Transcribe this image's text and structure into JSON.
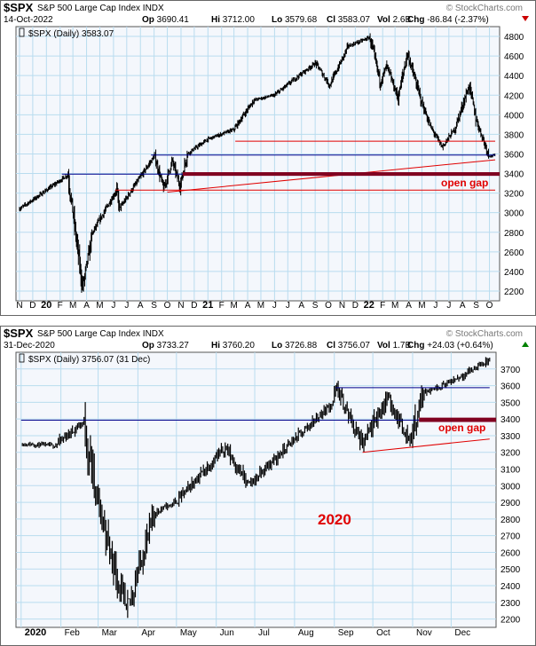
{
  "charts": [
    {
      "header": {
        "symbol": "$SPX",
        "name": "S&P 500 Large Cap Index",
        "exchange": "INDX",
        "date": "14-Oct-2022",
        "open_label": "Op",
        "open": "3690.41",
        "high_label": "Hi",
        "high": "3712.00",
        "low_label": "Lo",
        "low": "3579.68",
        "close_label": "Cl",
        "close": "3583.07",
        "vol_label": "Vol",
        "vol": "2.6B",
        "chg_label": "Chg",
        "chg": "-86.84 (-2.37%)",
        "chg_arrow": "down",
        "credit": "© StockCharts.com"
      },
      "legend": "$SPX (Daily) 3583.07",
      "y_ticks": [
        2200,
        2400,
        2600,
        2800,
        3000,
        3200,
        3400,
        3600,
        3800,
        4000,
        4200,
        4400,
        4600,
        4800
      ],
      "x_labels": [
        "N",
        "D",
        "20",
        "F",
        "M",
        "A",
        "M",
        "J",
        "J",
        "A",
        "S",
        "O",
        "N",
        "D",
        "21",
        "F",
        "M",
        "A",
        "M",
        "J",
        "J",
        "A",
        "S",
        "O",
        "N",
        "D",
        "22",
        "F",
        "M",
        "A",
        "M",
        "J",
        "J",
        "A",
        "S",
        "O"
      ],
      "x_bold": [
        "20",
        "21",
        "22"
      ],
      "annotation": "open gap"
    },
    {
      "header": {
        "symbol": "$SPX",
        "name": "S&P 500 Large Cap Index",
        "exchange": "INDX",
        "date": "31-Dec-2020",
        "open_label": "Op",
        "open": "3733.27",
        "high_label": "Hi",
        "high": "3760.20",
        "low_label": "Lo",
        "low": "3726.88",
        "close_label": "Cl",
        "close": "3756.07",
        "vol_label": "Vol",
        "vol": "1.7B",
        "chg_label": "Chg",
        "chg": "+24.03 (+0.64%)",
        "chg_arrow": "up",
        "credit": "© StockCharts.com"
      },
      "legend": "$SPX (Daily) 3756.07 (31 Dec)",
      "y_ticks": [
        2200,
        2300,
        2400,
        2500,
        2600,
        2700,
        2800,
        2900,
        3000,
        3100,
        3200,
        3300,
        3400,
        3500,
        3600,
        3700
      ],
      "x_labels": [
        "2020",
        "Feb",
        "Mar",
        "Apr",
        "May",
        "Jun",
        "Jul",
        "Aug",
        "Sep",
        "Oct",
        "Nov",
        "Dec"
      ],
      "x_bold": [
        "2020"
      ],
      "big_label": "2020",
      "annotation": "open gap"
    }
  ],
  "colors": {
    "plot_bg": "#f4f7fc",
    "grid": "#b9dcef",
    "price": "#000000",
    "blue_line": "#00008b",
    "red_line": "#e00000",
    "gap_band": "#800020",
    "annotation": "#e00000",
    "up_arrow": "#008000",
    "down_arrow": "#cc0000"
  },
  "chart_data": [
    {
      "type": "line",
      "title": "$SPX S&P 500 Large Cap Index INDX",
      "series": [
        {
          "name": "$SPX (Daily)",
          "x": [
            "2019-11-01",
            "2019-12-01",
            "2020-01-01",
            "2020-02-19",
            "2020-03-23",
            "2020-04-15",
            "2020-06-08",
            "2020-06-15",
            "2020-07-15",
            "2020-09-02",
            "2020-09-23",
            "2020-10-12",
            "2020-10-30",
            "2020-11-15",
            "2021-01-01",
            "2021-03-01",
            "2021-04-15",
            "2021-06-01",
            "2021-07-15",
            "2021-09-02",
            "2021-10-04",
            "2021-11-15",
            "2022-01-03",
            "2022-01-27",
            "2022-02-10",
            "2022-03-08",
            "2022-03-29",
            "2022-05-01",
            "2022-05-20",
            "2022-06-16",
            "2022-07-15",
            "2022-08-16",
            "2022-09-01",
            "2022-09-30",
            "2022-10-14"
          ],
          "values": [
            3040,
            3130,
            3230,
            3386,
            2237,
            2800,
            3230,
            3040,
            3250,
            3580,
            3240,
            3530,
            3270,
            3600,
            3750,
            3850,
            4150,
            4200,
            4360,
            4530,
            4300,
            4700,
            4790,
            4330,
            4500,
            4170,
            4630,
            4120,
            3880,
            3670,
            3860,
            4300,
            3950,
            3580,
            3583
          ]
        }
      ],
      "ylim": [
        2100,
        4900
      ],
      "reference_lines": [
        {
          "color": "red",
          "value": 3730,
          "from": "2021-03-04",
          "to": "2022-10-14"
        },
        {
          "color": "blue",
          "value": 3588,
          "from": "2020-08-25",
          "to": "2022-10-14"
        },
        {
          "color": "blue",
          "value": 3393,
          "from": "2020-02-05",
          "to": "2022-10-14"
        },
        {
          "color": "red",
          "value": 3230,
          "from": "2020-06-05",
          "to": "2022-10-14"
        },
        {
          "color": "red",
          "type": "trendline",
          "from_value": 3210,
          "to_value": 3540,
          "from": "2020-10-01",
          "to": "2022-10-14"
        }
      ],
      "open_gap_band": [
        3390,
        3400
      ]
    },
    {
      "type": "line",
      "title": "$SPX S&P 500 Large Cap Index INDX",
      "series": [
        {
          "name": "$SPX (Daily)",
          "x": [
            "2020-01-02",
            "2020-01-27",
            "2020-02-19",
            "2020-02-28",
            "2020-03-23",
            "2020-04-14",
            "2020-04-30",
            "2020-06-08",
            "2020-06-26",
            "2020-07-31",
            "2020-08-31",
            "2020-09-02",
            "2020-09-23",
            "2020-10-12",
            "2020-10-30",
            "2020-11-09",
            "2020-11-30",
            "2020-12-31"
          ],
          "values": [
            3250,
            3240,
            3386,
            2950,
            2237,
            2840,
            2900,
            3230,
            3000,
            3270,
            3500,
            3590,
            3240,
            3530,
            3270,
            3560,
            3620,
            3756
          ]
        }
      ],
      "ylim": [
        2150,
        3800
      ],
      "reference_lines": [
        {
          "color": "blue",
          "value": 3588,
          "from": "2020-09-02",
          "to": "2020-12-31"
        },
        {
          "color": "blue",
          "value": 3393,
          "from": "2020-01-01",
          "to": "2020-12-31"
        },
        {
          "color": "red",
          "type": "trendline",
          "from_value": 3200,
          "to_value": 3280,
          "from": "2020-09-23",
          "to": "2020-12-31"
        }
      ],
      "open_gap_band": [
        3390,
        3400
      ]
    }
  ]
}
